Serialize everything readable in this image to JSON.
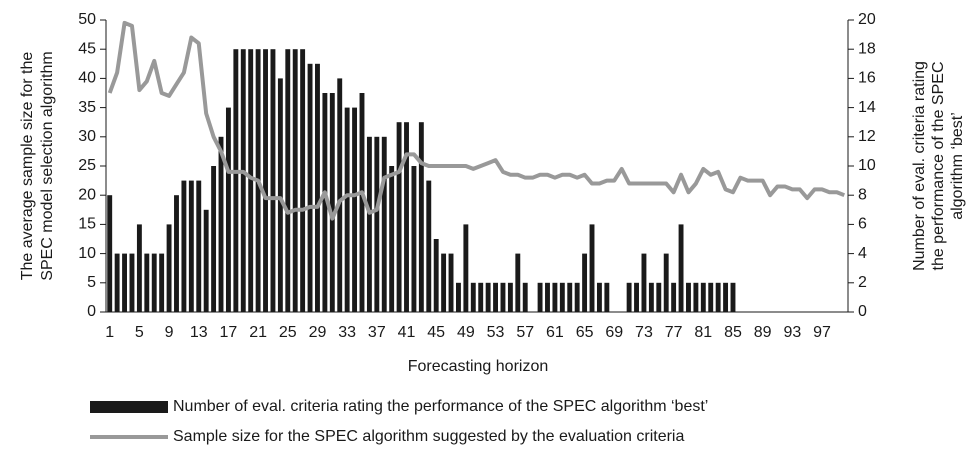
{
  "chart_data": {
    "type": "bar_line",
    "xlabel": "Forecasting horizon",
    "ylabel": [
      "The average sample size for the",
      "SPEC model selection algorithm"
    ],
    "y2label": [
      "Number of eval. criteria rating",
      "the performance of the SPEC",
      "algorithm ‘best’"
    ],
    "categories": [
      "1",
      null,
      null,
      null,
      "5",
      null,
      null,
      null,
      "9",
      null,
      null,
      null,
      "13",
      null,
      null,
      null,
      "17",
      null,
      null,
      null,
      "21",
      null,
      null,
      null,
      "25",
      null,
      null,
      null,
      "29",
      null,
      null,
      null,
      "33",
      null,
      null,
      null,
      "37",
      null,
      null,
      null,
      "41",
      null,
      null,
      null,
      "45",
      null,
      null,
      null,
      "49",
      null,
      null,
      null,
      "53",
      null,
      null,
      null,
      "57",
      null,
      null,
      null,
      "61",
      null,
      null,
      null,
      "65",
      null,
      null,
      null,
      "69",
      null,
      null,
      null,
      "73",
      null,
      null,
      null,
      "77",
      null,
      null,
      null,
      "81",
      null,
      null,
      null,
      "85",
      null,
      null,
      null,
      "89",
      null,
      null,
      null,
      "93",
      null,
      null,
      null,
      "97",
      null,
      null,
      null
    ],
    "series": [
      {
        "name": "Number of eval. criteria rating the performance of the SPEC algorithm ‘best’",
        "type": "bar",
        "axis": "y2",
        "color": "#1a1a1a",
        "values": [
          8,
          4,
          4,
          4,
          6,
          4,
          4,
          4,
          6,
          8,
          9,
          9,
          9,
          7,
          10,
          12,
          14,
          18,
          18,
          18,
          18,
          18,
          18,
          16,
          18,
          18,
          18,
          17,
          17,
          15,
          15,
          16,
          14,
          14,
          15,
          12,
          12,
          12,
          10,
          13,
          13,
          10,
          13,
          9,
          5,
          4,
          4,
          2,
          6,
          2,
          2,
          2,
          2,
          2,
          2,
          4,
          2,
          0,
          2,
          2,
          2,
          2,
          2,
          2,
          4,
          6,
          2,
          2,
          0,
          0,
          2,
          2,
          4,
          2,
          2,
          4,
          2,
          6,
          2,
          2,
          2,
          2,
          2,
          2,
          2,
          0,
          0,
          0,
          0,
          0,
          0,
          0,
          0,
          0,
          0,
          0,
          0,
          0,
          0,
          0
        ]
      },
      {
        "name": "Sample size for the SPEC algorithm suggested by the evaluation criteria",
        "type": "line",
        "color": "#999999",
        "values": [
          37.5,
          41,
          49.5,
          49,
          38,
          39.5,
          43,
          37.5,
          37,
          39,
          41,
          47,
          46,
          34,
          30,
          27.5,
          24,
          24,
          24,
          23,
          22.5,
          19.5,
          19.5,
          19.5,
          17,
          17.5,
          17.5,
          18,
          18,
          20.5,
          16,
          19,
          20,
          20,
          20.5,
          17,
          17.5,
          23,
          23.5,
          24,
          27,
          27,
          25.5,
          25,
          25,
          25,
          25,
          25,
          25,
          24.5,
          25,
          25.5,
          26,
          24,
          23.5,
          23.5,
          23,
          23,
          23.5,
          23.5,
          23,
          23.5,
          23.5,
          23,
          23.5,
          22,
          22,
          22.5,
          22.5,
          24.5,
          22,
          22,
          22,
          22,
          22,
          22,
          20.5,
          23.5,
          20.5,
          22,
          24.5,
          23.5,
          24,
          21,
          20.5,
          23,
          22.5,
          22.5,
          22.5,
          20,
          21.5,
          21.5,
          21,
          21,
          19.5,
          21,
          21,
          20.5,
          20.5,
          20
        ]
      }
    ],
    "ylim": [
      0,
      50
    ],
    "yticks": [
      0,
      5,
      10,
      15,
      20,
      25,
      30,
      35,
      40,
      45,
      50
    ],
    "y2lim": [
      0,
      20
    ],
    "y2ticks": [
      0,
      2,
      4,
      6,
      8,
      10,
      12,
      14,
      16,
      18,
      20
    ],
    "grid": false
  }
}
